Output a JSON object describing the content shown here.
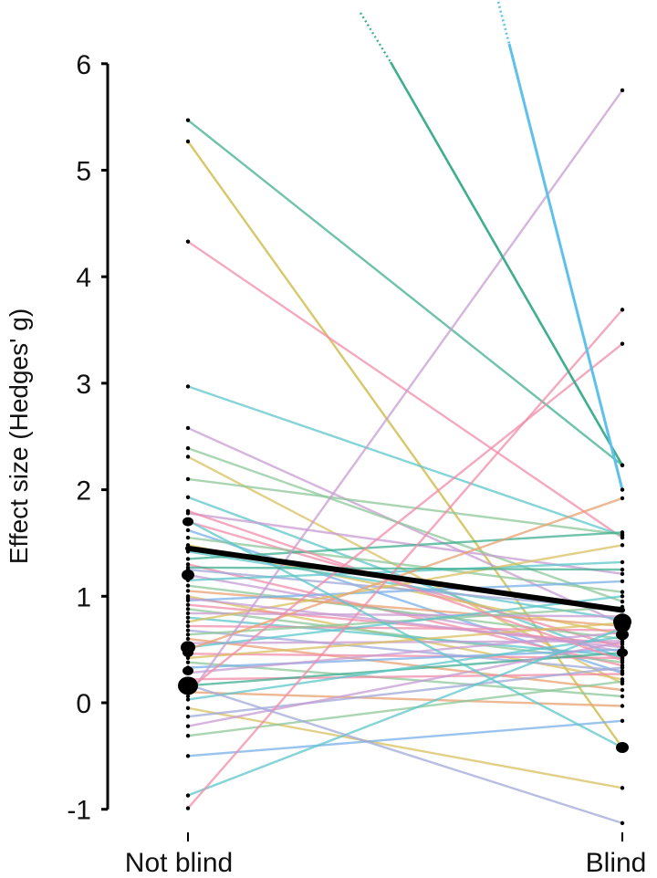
{
  "chart_data": {
    "type": "line",
    "title": "",
    "xlabel": "",
    "ylabel": "Effect size (Hedges' g)",
    "categories": [
      "Not blind",
      "Blind"
    ],
    "ylim": [
      -1,
      6
    ],
    "yticks": [
      -1,
      0,
      1,
      2,
      3,
      4,
      5,
      6
    ],
    "grid": false,
    "legend": "none",
    "mean_line": {
      "values": [
        1.45,
        0.87
      ],
      "color": "#000000"
    },
    "palette": [
      "#f08ca8",
      "#d8c060",
      "#8cc79a",
      "#5cc6c9",
      "#78b0e8",
      "#c79bd2",
      "#e8a070",
      "#a0a8d8"
    ],
    "pairs": [
      {
        "values": [
          5.47,
          2.23
        ],
        "color": "#3fae8f"
      },
      {
        "values": [
          5.27,
          -0.42
        ],
        "color": "#c9b53a"
      },
      {
        "values": [
          4.33,
          1.55
        ],
        "color": "#f08ca8"
      },
      {
        "values": [
          2.97,
          1.57
        ],
        "color": "#5cc6c9"
      },
      {
        "values": [
          2.58,
          0.74
        ],
        "color": "#c79bd2"
      },
      {
        "values": [
          2.39,
          0.95
        ],
        "color": "#8cc79a"
      },
      {
        "values": [
          2.31,
          0.18
        ],
        "color": "#d8c060"
      },
      {
        "values": [
          2.1,
          1.58
        ],
        "color": "#8cc79a"
      },
      {
        "values": [
          1.93,
          0.42
        ],
        "color": "#5cc6c9"
      },
      {
        "values": [
          1.78,
          1.21
        ],
        "color": "#c79bd2"
      },
      {
        "values": [
          1.7,
          0.52
        ],
        "color": "#f08ca8"
      },
      {
        "values": [
          1.62,
          0.28
        ],
        "color": "#78b0e8"
      },
      {
        "values": [
          1.55,
          1.04
        ],
        "color": "#8cc79a"
      },
      {
        "values": [
          1.48,
          0.64
        ],
        "color": "#d8c060"
      },
      {
        "values": [
          1.42,
          0.78
        ],
        "color": "#5cc6c9"
      },
      {
        "values": [
          1.35,
          1.6
        ],
        "color": "#3fae8f"
      },
      {
        "values": [
          1.3,
          0.35
        ],
        "color": "#f08ca8"
      },
      {
        "values": [
          1.25,
          0.88
        ],
        "color": "#a0a8d8"
      },
      {
        "values": [
          1.2,
          0.48
        ],
        "color": "#c79bd2"
      },
      {
        "values": [
          1.15,
          1.32
        ],
        "color": "#5cc6c9"
      },
      {
        "values": [
          1.1,
          0.6
        ],
        "color": "#8cc79a"
      },
      {
        "values": [
          1.05,
          0.72
        ],
        "color": "#e8a070"
      },
      {
        "values": [
          1.0,
          0.22
        ],
        "color": "#d8c060"
      },
      {
        "values": [
          0.96,
          1.14
        ],
        "color": "#78b0e8"
      },
      {
        "values": [
          0.92,
          0.55
        ],
        "color": "#f08ca8"
      },
      {
        "values": [
          0.88,
          0.38
        ],
        "color": "#8cc79a"
      },
      {
        "values": [
          0.84,
          0.81
        ],
        "color": "#c79bd2"
      },
      {
        "values": [
          0.8,
          0.44
        ],
        "color": "#5cc6c9"
      },
      {
        "values": [
          0.76,
          1.48
        ],
        "color": "#d8c060"
      },
      {
        "values": [
          0.72,
          0.68
        ],
        "color": "#f08ca8"
      },
      {
        "values": [
          0.68,
          0.3
        ],
        "color": "#a0a8d8"
      },
      {
        "values": [
          0.64,
          0.9
        ],
        "color": "#8cc79a"
      },
      {
        "values": [
          0.6,
          0.12
        ],
        "color": "#e8a070"
      },
      {
        "values": [
          0.56,
          0.58
        ],
        "color": "#c79bd2"
      },
      {
        "values": [
          0.52,
          1.0
        ],
        "color": "#5cc6c9"
      },
      {
        "values": [
          0.5,
          1.92
        ],
        "color": "#e8a070"
      },
      {
        "values": [
          0.46,
          0.42
        ],
        "color": "#f08ca8"
      },
      {
        "values": [
          0.42,
          0.75
        ],
        "color": "#d8c060"
      },
      {
        "values": [
          0.38,
          0.06
        ],
        "color": "#8cc79a"
      },
      {
        "values": [
          0.33,
          0.5
        ],
        "color": "#78b0e8"
      },
      {
        "values": [
          0.28,
          0.66
        ],
        "color": "#c79bd2"
      },
      {
        "values": [
          0.22,
          0.27
        ],
        "color": "#f08ca8"
      },
      {
        "values": [
          0.16,
          0.47
        ],
        "color": "#3fae8f"
      },
      {
        "values": [
          0.1,
          -0.03
        ],
        "color": "#e8a070"
      },
      {
        "values": [
          0.03,
          0.62
        ],
        "color": "#5cc6c9"
      },
      {
        "values": [
          -0.05,
          -0.8
        ],
        "color": "#d8c060"
      },
      {
        "values": [
          -0.13,
          0.33
        ],
        "color": "#a0a8d8"
      },
      {
        "values": [
          -0.22,
          0.57
        ],
        "color": "#c79bd2"
      },
      {
        "values": [
          -0.31,
          0.2
        ],
        "color": "#8cc79a"
      },
      {
        "values": [
          -0.5,
          -0.17
        ],
        "color": "#78b0e8"
      },
      {
        "values": [
          -0.87,
          0.7
        ],
        "color": "#5cc6c9"
      },
      {
        "values": [
          -0.99,
          3.69
        ],
        "color": "#f08ca8"
      },
      {
        "values": [
          0.06,
          5.75
        ],
        "color": "#c79bd2"
      },
      {
        "values": [
          0.12,
          3.37
        ],
        "color": "#f08ca8"
      },
      {
        "values": [
          0.17,
          -1.13
        ],
        "color": "#a0a8d8"
      },
      {
        "values": [
          1.71,
          -0.42
        ],
        "color": "#5cc6c9"
      },
      {
        "values": [
          1.8,
          0.4
        ],
        "color": "#f08ca8"
      },
      {
        "values": [
          1.27,
          1.25
        ],
        "color": "#3fae8f"
      },
      {
        "values": [
          0.98,
          0.52
        ],
        "color": "#c79bd2"
      }
    ],
    "overflow_lines": [
      {
        "from_category": "Not blind",
        "color": "#3fae8f",
        "end_value": 2.23
      },
      {
        "from_category": "Not blind",
        "color": "#5ec1ec",
        "end_value": 2.0
      }
    ],
    "large_points": {
      "Not blind": [
        1.7,
        1.2,
        0.52,
        0.47,
        0.3,
        0.16
      ],
      "Blind": [
        0.76,
        0.73,
        0.64,
        0.47,
        -0.42
      ]
    }
  }
}
